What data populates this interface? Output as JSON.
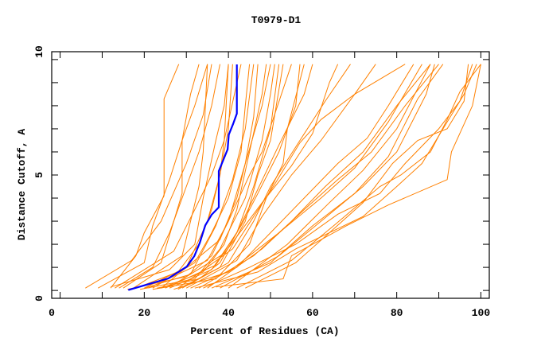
{
  "chart_data": {
    "type": "line",
    "title": "T0979-D1",
    "xlabel": "Percent of Residues (CA)",
    "ylabel": "Distance Cutoff, A",
    "xlim": [
      -2,
      102
    ],
    "ylim": [
      -0.34,
      10.34
    ],
    "x_ticks": [
      "0",
      "20",
      "40",
      "60",
      "80",
      "100"
    ],
    "y_ticks": [
      "0",
      "5",
      "10"
    ],
    "grid": false,
    "colors": {
      "models": "#ff8000",
      "highlight": "#0000ff",
      "axis": "#000000"
    },
    "highlight_series": [
      [
        16.2,
        0.02
      ],
      [
        25.7,
        0.52
      ],
      [
        30.1,
        1.03
      ],
      [
        31.9,
        1.49
      ],
      [
        33.2,
        2.07
      ],
      [
        34.5,
        2.82
      ],
      [
        36.0,
        3.28
      ],
      [
        37.7,
        3.6
      ],
      [
        37.7,
        5.17
      ],
      [
        39.8,
        6.11
      ],
      [
        40.1,
        6.75
      ],
      [
        41.1,
        7.2
      ],
      [
        42.0,
        7.66
      ],
      [
        42.0,
        9.79
      ]
    ],
    "series": [
      [
        [
          12,
          0.1
        ],
        [
          18,
          1.5
        ],
        [
          20,
          2.5
        ],
        [
          24.7,
          4.1
        ],
        [
          24.7,
          8.3
        ],
        [
          28.2,
          9.8
        ]
      ],
      [
        [
          9,
          0.1
        ],
        [
          20,
          1.2
        ],
        [
          22,
          2.8
        ],
        [
          26,
          4.8
        ],
        [
          29,
          6.5
        ],
        [
          31,
          8.5
        ],
        [
          33,
          9.8
        ]
      ],
      [
        [
          6,
          0.1
        ],
        [
          17,
          1.3
        ],
        [
          24,
          3
        ],
        [
          30,
          5.5
        ],
        [
          34,
          7.6
        ],
        [
          36,
          9.8
        ]
      ],
      [
        [
          14,
          0.1
        ],
        [
          22,
          1
        ],
        [
          26,
          2.5
        ],
        [
          30,
          4.5
        ],
        [
          33,
          6
        ],
        [
          36,
          8
        ],
        [
          38,
          9.8
        ]
      ],
      [
        [
          15,
          0.1
        ],
        [
          24,
          1.2
        ],
        [
          27,
          3
        ],
        [
          29,
          4.2
        ],
        [
          29,
          6.5
        ],
        [
          32,
          8
        ],
        [
          35,
          9.8
        ]
      ],
      [
        [
          18,
          0.1
        ],
        [
          28,
          0.8
        ],
        [
          33,
          2
        ],
        [
          36,
          3.5
        ],
        [
          38,
          5
        ],
        [
          40,
          7
        ],
        [
          41,
          9.8
        ]
      ],
      [
        [
          20,
          0.1
        ],
        [
          30,
          1
        ],
        [
          35,
          3
        ],
        [
          38,
          5
        ],
        [
          39,
          6.5
        ],
        [
          40,
          9.8
        ]
      ],
      [
        [
          22,
          0.1
        ],
        [
          32,
          1.2
        ],
        [
          36,
          2.5
        ],
        [
          40,
          4
        ],
        [
          43,
          6
        ],
        [
          44,
          8
        ],
        [
          45,
          9.8
        ]
      ],
      [
        [
          16,
          0.05
        ],
        [
          30,
          0.6
        ],
        [
          36,
          1.5
        ],
        [
          40,
          3
        ],
        [
          44,
          5.5
        ],
        [
          46,
          7.5
        ],
        [
          47,
          9.8
        ]
      ],
      [
        [
          24,
          0.1
        ],
        [
          34,
          0.8
        ],
        [
          39,
          2
        ],
        [
          42,
          3.5
        ],
        [
          45,
          6
        ],
        [
          48,
          8.5
        ],
        [
          49,
          9.8
        ]
      ],
      [
        [
          19,
          0.05
        ],
        [
          32,
          0.5
        ],
        [
          38,
          1.8
        ],
        [
          44,
          4
        ],
        [
          48,
          6.5
        ],
        [
          50,
          8.5
        ],
        [
          51,
          9.8
        ]
      ],
      [
        [
          26,
          0.1
        ],
        [
          36,
          0.9
        ],
        [
          42,
          2.5
        ],
        [
          46,
          4.5
        ],
        [
          50,
          7
        ],
        [
          52,
          9.8
        ]
      ],
      [
        [
          28,
          0.05
        ],
        [
          38,
          1
        ],
        [
          44,
          3
        ],
        [
          47,
          5
        ],
        [
          50,
          6.5
        ],
        [
          53,
          9.8
        ]
      ],
      [
        [
          21,
          0.1
        ],
        [
          35,
          1.3
        ],
        [
          40,
          3
        ],
        [
          45,
          5
        ],
        [
          48,
          6
        ],
        [
          55,
          9.8
        ]
      ],
      [
        [
          25,
          0.1
        ],
        [
          37,
          1.1
        ],
        [
          43,
          2.8
        ],
        [
          47,
          4.2
        ],
        [
          52,
          6
        ],
        [
          56,
          8
        ],
        [
          57,
          9.8
        ]
      ],
      [
        [
          23,
          0.1
        ],
        [
          33,
          0.5
        ],
        [
          38,
          1.2
        ],
        [
          42,
          2.5
        ],
        [
          46,
          4
        ],
        [
          52,
          6.3
        ],
        [
          58,
          8.5
        ],
        [
          60,
          9.8
        ]
      ],
      [
        [
          29,
          0.1
        ],
        [
          40,
          1.2
        ],
        [
          46,
          3
        ],
        [
          50,
          4.5
        ],
        [
          57,
          6.5
        ],
        [
          63,
          8.2
        ],
        [
          69,
          9.8
        ]
      ],
      [
        [
          30,
          0.1
        ],
        [
          42,
          1.3
        ],
        [
          48,
          3.2
        ],
        [
          55,
          5
        ],
        [
          62,
          6.5
        ],
        [
          70,
          8.5
        ],
        [
          75,
          9.8
        ]
      ],
      [
        [
          31,
          0.1
        ],
        [
          42,
          1
        ],
        [
          50,
          2.5
        ],
        [
          58,
          4
        ],
        [
          66,
          5.5
        ],
        [
          73,
          6.6
        ],
        [
          78,
          8
        ],
        [
          84,
          9.8
        ]
      ],
      [
        [
          27,
          0.05
        ],
        [
          40,
          0.8
        ],
        [
          52,
          2.5
        ],
        [
          62,
          4
        ],
        [
          70,
          5.3
        ],
        [
          78,
          7.3
        ],
        [
          86,
          9.8
        ]
      ],
      [
        [
          33,
          0.1
        ],
        [
          46,
          1.5
        ],
        [
          55,
          3
        ],
        [
          63,
          4.5
        ],
        [
          72,
          6
        ],
        [
          80,
          8
        ],
        [
          88,
          9.8
        ]
      ],
      [
        [
          35,
          0.1
        ],
        [
          48,
          1.8
        ],
        [
          58,
          3.5
        ],
        [
          66,
          4.8
        ],
        [
          74,
          6
        ],
        [
          82,
          8
        ],
        [
          90,
          9.8
        ]
      ],
      [
        [
          36,
          0.1
        ],
        [
          50,
          1.2
        ],
        [
          60,
          2.8
        ],
        [
          70,
          4.2
        ],
        [
          78,
          5.8
        ],
        [
          85,
          8.3
        ],
        [
          91,
          9.8
        ]
      ],
      [
        [
          38,
          0.1
        ],
        [
          52,
          1.5
        ],
        [
          62,
          3
        ],
        [
          72,
          4.5
        ],
        [
          80,
          6
        ],
        [
          87,
          8.5
        ],
        [
          89,
          9.8
        ]
      ],
      [
        [
          40,
          0.1
        ],
        [
          54,
          2
        ],
        [
          64,
          3.8
        ],
        [
          72,
          5.2
        ],
        [
          80,
          7
        ],
        [
          88,
          9.8
        ]
      ],
      [
        [
          34,
          0.1
        ],
        [
          45,
          1
        ],
        [
          56,
          2
        ],
        [
          66,
          3.3
        ],
        [
          76,
          4.2
        ],
        [
          82,
          5.5
        ],
        [
          90,
          7
        ],
        [
          95,
          8.2
        ],
        [
          98,
          9.8
        ]
      ],
      [
        [
          37,
          0.15
        ],
        [
          53,
          0.5
        ],
        [
          55,
          1.5
        ],
        [
          60,
          2
        ],
        [
          68,
          2.8
        ],
        [
          78,
          3.7
        ],
        [
          92,
          4.8
        ],
        [
          93,
          6
        ],
        [
          98,
          8
        ],
        [
          100,
          9.8
        ]
      ],
      [
        [
          32,
          0.1
        ],
        [
          47,
          0.8
        ],
        [
          56,
          1.8
        ],
        [
          64,
          2.5
        ],
        [
          72,
          3.2
        ],
        [
          80,
          4.5
        ],
        [
          86,
          5.5
        ],
        [
          90,
          6.7
        ],
        [
          96,
          8.5
        ],
        [
          99,
          9.8
        ]
      ],
      [
        [
          44,
          0.1
        ],
        [
          56,
          1.2
        ],
        [
          64,
          2.5
        ],
        [
          72,
          3.8
        ],
        [
          79,
          5.5
        ],
        [
          85,
          6.5
        ],
        [
          92,
          7
        ],
        [
          96,
          8.2
        ],
        [
          97,
          9.8
        ]
      ],
      [
        [
          42,
          0.1
        ],
        [
          55,
          1.3
        ],
        [
          65,
          2.8
        ],
        [
          76,
          4.5
        ],
        [
          81,
          5
        ],
        [
          88,
          6
        ],
        [
          92,
          7.4
        ],
        [
          95,
          8.6
        ],
        [
          100,
          9.8
        ]
      ],
      [
        [
          12,
          0.15
        ],
        [
          26,
          0.9
        ],
        [
          32,
          2
        ],
        [
          34,
          4
        ],
        [
          37,
          6.5
        ],
        [
          39,
          8
        ],
        [
          40,
          9.8
        ]
      ],
      [
        [
          17,
          0.05
        ],
        [
          29,
          1.5
        ],
        [
          31,
          3
        ],
        [
          33,
          4.5
        ],
        [
          34,
          6
        ],
        [
          35,
          9.8
        ]
      ],
      [
        [
          20,
          0.1
        ],
        [
          31,
          0.7
        ],
        [
          37,
          2.8
        ],
        [
          41,
          4.8
        ],
        [
          44,
          7
        ],
        [
          46,
          9.8
        ]
      ],
      [
        [
          13,
          0.1
        ],
        [
          27,
          1.7
        ],
        [
          32,
          3.5
        ],
        [
          36,
          5
        ],
        [
          39,
          6.5
        ],
        [
          43,
          9.8
        ]
      ],
      [
        [
          22,
          0.05
        ],
        [
          37,
          0.5
        ],
        [
          45,
          2
        ],
        [
          49,
          4
        ],
        [
          53,
          5.5
        ],
        [
          54,
          7
        ],
        [
          58,
          9.8
        ]
      ],
      [
        [
          26,
          0.15
        ],
        [
          39,
          1.6
        ],
        [
          48,
          3.8
        ],
        [
          55,
          5.4
        ],
        [
          60,
          6.8
        ],
        [
          64,
          9
        ],
        [
          66,
          9.8
        ]
      ],
      [
        [
          24,
          0.1
        ],
        [
          38,
          2.2
        ],
        [
          42,
          4
        ],
        [
          44,
          5.5
        ],
        [
          48,
          8
        ],
        [
          50,
          9.8
        ]
      ],
      [
        [
          28,
          0.1
        ],
        [
          41,
          1.8
        ],
        [
          51,
          4.6
        ],
        [
          57,
          6.4
        ],
        [
          62,
          7.4
        ],
        [
          70,
          8.5
        ],
        [
          82,
          9.8
        ]
      ]
    ]
  }
}
